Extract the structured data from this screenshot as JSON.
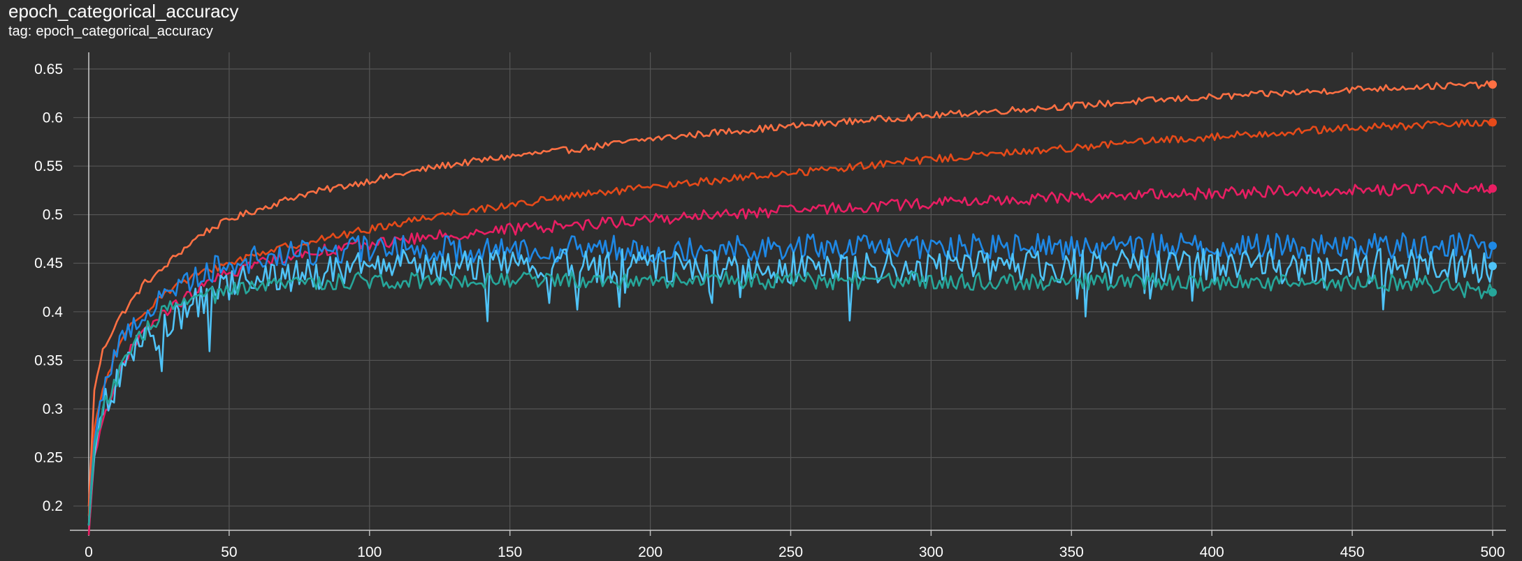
{
  "header": {
    "title": "epoch_categorical_accuracy",
    "tag_label": "tag:",
    "tag_value": "epoch_categorical_accuracy"
  },
  "chart_data": {
    "type": "line",
    "title": "epoch_categorical_accuracy",
    "subtitle": "tag: epoch_categorical_accuracy",
    "xlabel": "",
    "ylabel": "",
    "xlim": [
      0,
      500
    ],
    "ylim": [
      0.175,
      0.665
    ],
    "x_ticks": [
      0,
      50,
      100,
      150,
      200,
      250,
      300,
      350,
      400,
      450,
      500
    ],
    "y_ticks": [
      0.2,
      0.25,
      0.3,
      0.35,
      0.4,
      0.45,
      0.5,
      0.55,
      0.6,
      0.65
    ],
    "y_tick_labels": [
      "0.2",
      "0.25",
      "0.3",
      "0.35",
      "0.4",
      "0.45",
      "0.5",
      "0.55",
      "0.6",
      "0.65"
    ],
    "grid": true,
    "series": [
      {
        "color": "#ff7043",
        "x": [
          0,
          2,
          5,
          10,
          15,
          20,
          25,
          30,
          40,
          50,
          60,
          75,
          100,
          125,
          150,
          175,
          200,
          225,
          250,
          275,
          300,
          325,
          350,
          375,
          400,
          425,
          450,
          475,
          500
        ],
        "values": [
          0.2,
          0.32,
          0.36,
          0.39,
          0.41,
          0.43,
          0.44,
          0.455,
          0.48,
          0.495,
          0.505,
          0.52,
          0.535,
          0.55,
          0.56,
          0.568,
          0.578,
          0.585,
          0.591,
          0.597,
          0.602,
          0.607,
          0.612,
          0.617,
          0.621,
          0.625,
          0.629,
          0.632,
          0.634
        ]
      },
      {
        "color": "#e64a19",
        "x": [
          0,
          2,
          5,
          10,
          15,
          20,
          25,
          30,
          40,
          50,
          60,
          75,
          100,
          125,
          150,
          175,
          200,
          225,
          250,
          275,
          300,
          325,
          350,
          375,
          400,
          425,
          450,
          475,
          500
        ],
        "values": [
          0.19,
          0.28,
          0.32,
          0.36,
          0.385,
          0.4,
          0.415,
          0.425,
          0.44,
          0.45,
          0.46,
          0.47,
          0.485,
          0.5,
          0.51,
          0.52,
          0.528,
          0.536,
          0.543,
          0.55,
          0.557,
          0.563,
          0.569,
          0.575,
          0.58,
          0.585,
          0.589,
          0.592,
          0.595
        ]
      },
      {
        "color": "#e91e63",
        "x": [
          0,
          2,
          5,
          10,
          15,
          20,
          25,
          30,
          40,
          50,
          60,
          75,
          100,
          125,
          150,
          175,
          200,
          225,
          250,
          275,
          300,
          325,
          350,
          375,
          400,
          425,
          450,
          475,
          500
        ],
        "values": [
          0.17,
          0.25,
          0.29,
          0.33,
          0.36,
          0.38,
          0.395,
          0.405,
          0.425,
          0.44,
          0.45,
          0.46,
          0.47,
          0.478,
          0.485,
          0.49,
          0.495,
          0.5,
          0.504,
          0.508,
          0.512,
          0.515,
          0.518,
          0.52,
          0.522,
          0.524,
          0.525,
          0.526,
          0.527
        ]
      },
      {
        "color": "#1e88e5",
        "x": [
          0,
          2,
          5,
          10,
          15,
          20,
          25,
          30,
          40,
          50,
          60,
          75,
          100,
          125,
          150,
          175,
          200,
          225,
          250,
          275,
          300,
          325,
          350,
          375,
          400,
          425,
          450,
          475,
          500
        ],
        "values": [
          0.18,
          0.27,
          0.32,
          0.36,
          0.385,
          0.4,
          0.41,
          0.425,
          0.44,
          0.45,
          0.455,
          0.46,
          0.465,
          0.465,
          0.465,
          0.465,
          0.465,
          0.466,
          0.466,
          0.466,
          0.466,
          0.466,
          0.467,
          0.467,
          0.467,
          0.467,
          0.467,
          0.468,
          0.468
        ]
      },
      {
        "color": "#4fc3f7",
        "x": [
          0,
          2,
          5,
          10,
          15,
          20,
          25,
          30,
          40,
          50,
          60,
          75,
          100,
          125,
          150,
          175,
          200,
          225,
          250,
          275,
          300,
          325,
          350,
          375,
          400,
          425,
          450,
          475,
          500
        ],
        "values": [
          0.18,
          0.25,
          0.3,
          0.33,
          0.35,
          0.37,
          0.38,
          0.39,
          0.41,
          0.425,
          0.435,
          0.44,
          0.445,
          0.447,
          0.447,
          0.447,
          0.447,
          0.447,
          0.447,
          0.447,
          0.447,
          0.447,
          0.447,
          0.447,
          0.447,
          0.447,
          0.447,
          0.447,
          0.447
        ]
      },
      {
        "color": "#26a69a",
        "x": [
          0,
          2,
          5,
          10,
          15,
          20,
          25,
          30,
          40,
          50,
          60,
          75,
          100,
          125,
          150,
          175,
          200,
          225,
          250,
          275,
          300,
          325,
          350,
          375,
          400,
          425,
          450,
          475,
          500
        ],
        "values": [
          0.18,
          0.26,
          0.3,
          0.33,
          0.36,
          0.38,
          0.395,
          0.405,
          0.415,
          0.42,
          0.425,
          0.43,
          0.432,
          0.433,
          0.433,
          0.433,
          0.433,
          0.433,
          0.432,
          0.432,
          0.432,
          0.431,
          0.431,
          0.431,
          0.43,
          0.43,
          0.43,
          0.429,
          0.42
        ]
      }
    ]
  }
}
